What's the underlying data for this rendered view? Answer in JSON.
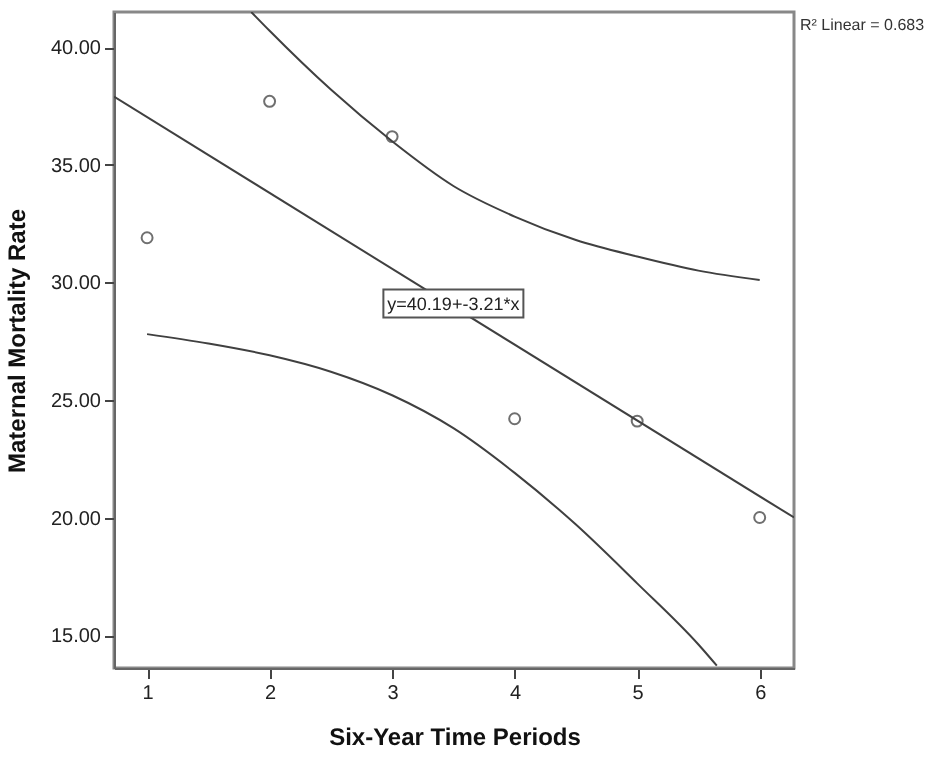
{
  "chart_data": {
    "type": "scatter",
    "xlabel": "Six-Year Time Periods",
    "ylabel": "Maternal Mortality Rate",
    "xlim": [
      0.73,
      6.28
    ],
    "ylim": [
      13.6,
      41.5
    ],
    "xticks": [
      1,
      2,
      3,
      4,
      5,
      6
    ],
    "yticks": [
      {
        "value": 15,
        "label": "15.00"
      },
      {
        "value": 20,
        "label": "20.00"
      },
      {
        "value": 25,
        "label": "25.00"
      },
      {
        "value": 30,
        "label": "30.00"
      },
      {
        "value": 35,
        "label": "35.00"
      },
      {
        "value": 40,
        "label": "40.00"
      }
    ],
    "x": [
      1,
      2,
      3,
      4,
      5,
      6
    ],
    "series": [
      {
        "color": "#333333",
        "values": [
          31.9,
          37.7,
          36.2,
          24.2,
          24.1,
          20.0
        ]
      },
      {
        "type": "line",
        "marker": "none",
        "color": "#404040",
        "x": [
          0.73,
          6.28
        ],
        "values": [
          37.9,
          20.0
        ]
      },
      {
        "type": "line",
        "marker": "none",
        "color": "#404040",
        "x": [
          1.85,
          2,
          2.5,
          3,
          3.5,
          4,
          4.5,
          5,
          5.5,
          6
        ],
        "values": [
          41.5,
          40.7,
          38.2,
          36.0,
          34.1,
          32.8,
          31.8,
          31.1,
          30.5,
          30.1
        ]
      },
      {
        "type": "line",
        "marker": "none",
        "color": "#404040",
        "x": [
          1,
          1.5,
          2,
          2.5,
          3,
          3.5,
          4,
          4.5,
          5,
          5.5,
          5.65
        ],
        "values": [
          27.8,
          27.4,
          26.9,
          26.2,
          25.2,
          23.8,
          21.9,
          19.7,
          17.2,
          14.6,
          13.7
        ]
      }
    ],
    "marker": "circle",
    "grid": false,
    "annotations": [
      "R² Linear = 0.683",
      {
        "text": "y=40.19+-3.21*x",
        "x": 3.5,
        "y": 29.1
      }
    ]
  }
}
